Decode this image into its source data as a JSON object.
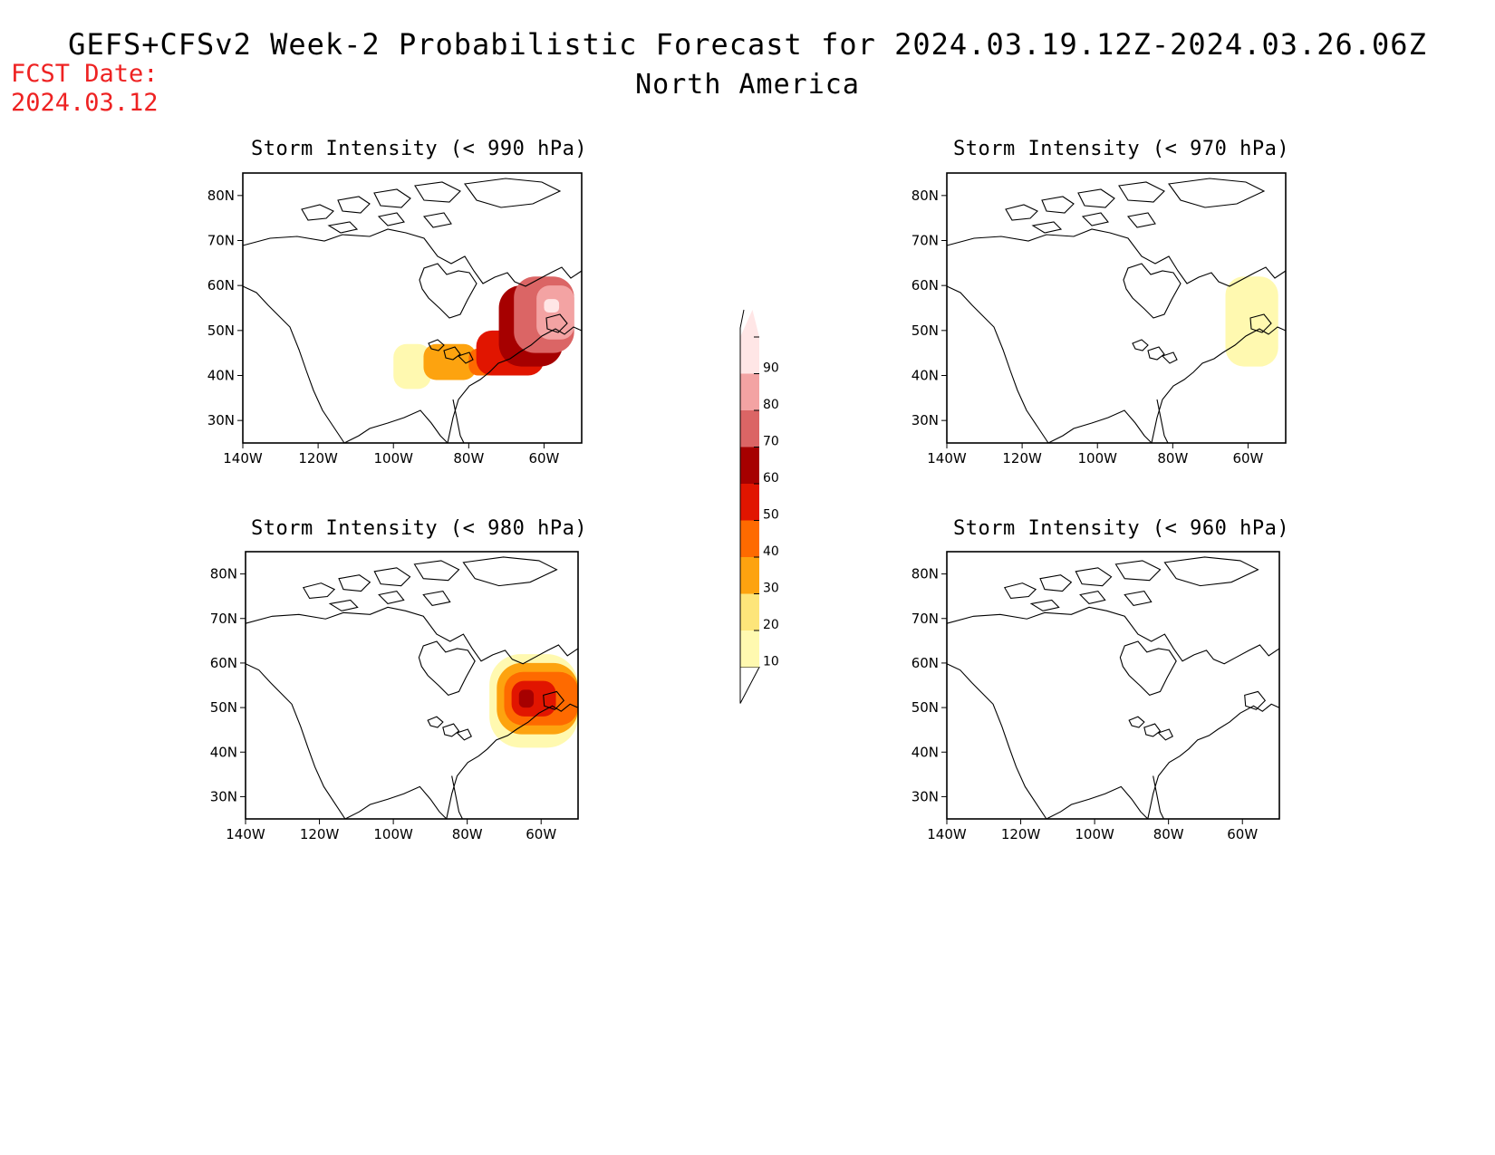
{
  "header": {
    "title": "GEFS+CFSv2 Week-2 Probabilistic Forecast for 2024.03.19.12Z-2024.03.26.06Z",
    "subtitle": "North America",
    "fcst_label": "FCST Date:",
    "fcst_date": "2024.03.12"
  },
  "colors": {
    "p10": "#fff9b0",
    "p20": "#fde57a",
    "p30": "#fda30f",
    "p40": "#fe6a00",
    "p50": "#e11500",
    "p60": "#a60000",
    "p70": "#db6565",
    "p80": "#f3a3a3",
    "p90": "#ffe6e6"
  },
  "colorbar": {
    "levels": [
      "10",
      "20",
      "30",
      "40",
      "50",
      "60",
      "70",
      "80",
      "90"
    ]
  },
  "chart_data": [
    {
      "type": "heatmap",
      "title": "Storm Intensity (< 990 hPa)",
      "x_ticks": [
        "140W",
        "120W",
        "100W",
        "80W",
        "60W"
      ],
      "y_ticks": [
        "80N",
        "70N",
        "60N",
        "50N",
        "40N",
        "30N"
      ],
      "xlim": [
        -140,
        -50
      ],
      "ylim": [
        25,
        85
      ],
      "regions": [
        {
          "lon": [
            -100,
            -90
          ],
          "lat": [
            37,
            47
          ],
          "value": 10
        },
        {
          "lon": [
            -92,
            -78
          ],
          "lat": [
            39,
            47
          ],
          "value": 30
        },
        {
          "lon": [
            -80,
            -70
          ],
          "lat": [
            40,
            46
          ],
          "value": 40
        },
        {
          "lon": [
            -78,
            -60
          ],
          "lat": [
            40,
            50
          ],
          "value": 50
        },
        {
          "lon": [
            -72,
            -55
          ],
          "lat": [
            42,
            60
          ],
          "value": 60
        },
        {
          "lon": [
            -68,
            -52
          ],
          "lat": [
            45,
            62
          ],
          "value": 70
        },
        {
          "lon": [
            -62,
            -52
          ],
          "lat": [
            48,
            60
          ],
          "value": 80
        },
        {
          "lon": [
            -60,
            -56
          ],
          "lat": [
            54,
            57
          ],
          "value": 90
        }
      ]
    },
    {
      "type": "heatmap",
      "title": "Storm Intensity (< 970 hPa)",
      "x_ticks": [
        "140W",
        "120W",
        "100W",
        "80W",
        "60W"
      ],
      "y_ticks": [
        "80N",
        "70N",
        "60N",
        "50N",
        "40N",
        "30N"
      ],
      "xlim": [
        -140,
        -50
      ],
      "ylim": [
        25,
        85
      ],
      "regions": [
        {
          "lon": [
            -66,
            -52
          ],
          "lat": [
            42,
            62
          ],
          "value": 10
        }
      ]
    },
    {
      "type": "heatmap",
      "title": "Storm Intensity (< 980 hPa)",
      "x_ticks": [
        "140W",
        "120W",
        "100W",
        "80W",
        "60W"
      ],
      "y_ticks": [
        "80N",
        "70N",
        "60N",
        "50N",
        "40N",
        "30N"
      ],
      "xlim": [
        -140,
        -50
      ],
      "ylim": [
        25,
        85
      ],
      "regions": [
        {
          "lon": [
            -74,
            -50
          ],
          "lat": [
            41,
            62
          ],
          "value": 10
        },
        {
          "lon": [
            -72,
            -50
          ],
          "lat": [
            44,
            60
          ],
          "value": 30
        },
        {
          "lon": [
            -70,
            -50
          ],
          "lat": [
            46,
            58
          ],
          "value": 40
        },
        {
          "lon": [
            -68,
            -56
          ],
          "lat": [
            48,
            56
          ],
          "value": 50
        },
        {
          "lon": [
            -66,
            -62
          ],
          "lat": [
            50,
            54
          ],
          "value": 60
        }
      ]
    },
    {
      "type": "heatmap",
      "title": "Storm Intensity (< 960 hPa)",
      "x_ticks": [
        "140W",
        "120W",
        "100W",
        "80W",
        "60W"
      ],
      "y_ticks": [
        "80N",
        "70N",
        "60N",
        "50N",
        "40N",
        "30N"
      ],
      "xlim": [
        -140,
        -50
      ],
      "ylim": [
        25,
        85
      ],
      "regions": []
    }
  ]
}
